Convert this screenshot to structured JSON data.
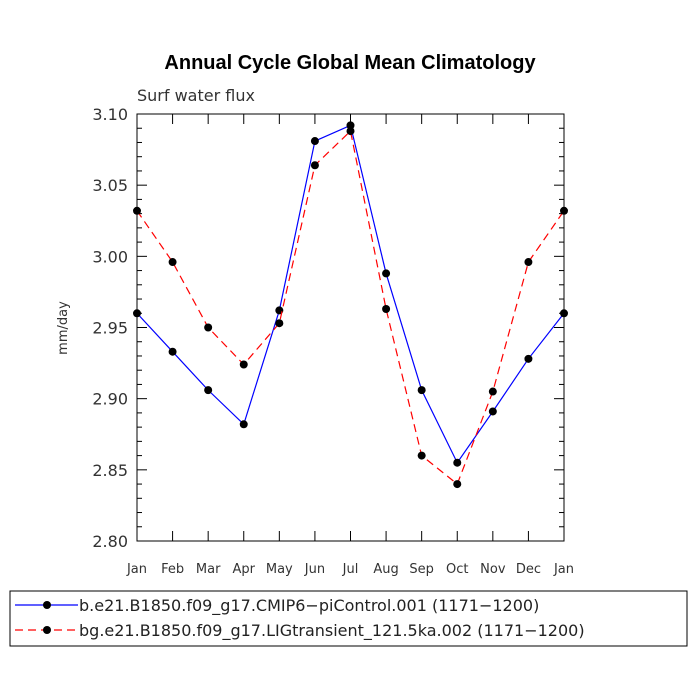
{
  "chart_data": {
    "type": "line",
    "title": "Annual Cycle Global Mean Climatology",
    "subtitle": "Surf water flux",
    "xlabel": "",
    "ylabel": "mm/day",
    "ylim": [
      2.8,
      3.1
    ],
    "y_ticks": [
      "2.80",
      "2.85",
      "2.90",
      "2.95",
      "3.00",
      "3.05",
      "3.10"
    ],
    "categories": [
      "Jan",
      "Feb",
      "Mar",
      "Apr",
      "May",
      "Jun",
      "Jul",
      "Aug",
      "Sep",
      "Oct",
      "Nov",
      "Dec",
      "Jan"
    ],
    "grid": false,
    "legend_position": "bottom",
    "series": [
      {
        "name": "b.e21.B1850.f09_g17.CMIP6−piControl.001 (1171−1200)",
        "color": "#0000ff",
        "line_style": "solid",
        "values": [
          2.96,
          2.933,
          2.906,
          2.882,
          2.962,
          3.081,
          3.092,
          2.988,
          2.906,
          2.855,
          2.891,
          2.928,
          2.96
        ]
      },
      {
        "name": "bg.e21.B1850.f09_g17.LIGtransient_121.5ka.002 (1171−1200)",
        "color": "#ff0000",
        "line_style": "dashed",
        "values": [
          3.032,
          2.996,
          2.95,
          2.924,
          2.953,
          3.064,
          3.088,
          2.963,
          2.86,
          2.84,
          2.905,
          2.996,
          3.032
        ]
      }
    ]
  }
}
